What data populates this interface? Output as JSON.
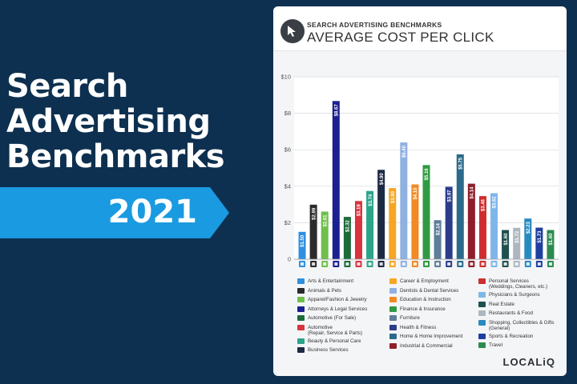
{
  "headline": {
    "line1": "Search",
    "line2": "Advertising",
    "line3": "Benchmarks",
    "year": "2021"
  },
  "card": {
    "kicker": "SEARCH ADVERTISING BENCHMARKS",
    "title": "AVERAGE COST PER CLICK",
    "brand": "LOCALiQ"
  },
  "colors": {
    "background": "#0d3050",
    "ribbon": "#1a9ae0",
    "card": "#f4f5f7"
  },
  "chart_data": {
    "type": "bar",
    "title": "AVERAGE COST PER CLICK",
    "xlabel": "",
    "ylabel": "",
    "ylim": [
      0,
      10
    ],
    "yticks": [
      "0",
      "$2",
      "$4",
      "$6",
      "$8",
      "$10"
    ],
    "grid": true,
    "legend_position": "bottom",
    "categories": [
      "Arts & Entertainment",
      "Animals & Pets",
      "Apparel/Fashion & Jewelry",
      "Attorneys & Legal Services",
      "Automotive (For Sale)",
      "Automotive (Repair, Service & Parts)",
      "Beauty & Personal Care",
      "Business Services",
      "Career & Employment",
      "Dentists & Dental Services",
      "Education & Instruction",
      "Finance & Insurance",
      "Furniture",
      "Health & Fitness",
      "Home & Home Improvement",
      "Industrial & Commercial",
      "Personal Services (Weddings, Cleaners, etc.)",
      "Physicians & Surgeons",
      "Real Estate",
      "Restaurants & Food",
      "Shopping, Collectibles & Gifts (General)",
      "Sports & Recreation",
      "Travel"
    ],
    "values": [
      1.5,
      2.99,
      2.61,
      8.67,
      2.32,
      3.19,
      3.74,
      4.9,
      3.9,
      6.4,
      4.1,
      5.16,
      2.14,
      3.97,
      5.75,
      4.14,
      3.46,
      3.62,
      1.6,
      1.72,
      2.23,
      1.73,
      1.6
    ],
    "value_labels": [
      "$1.50",
      "$2.99",
      "$2.61",
      "$8.67",
      "$2.32",
      "$3.19",
      "$3.74",
      "$4.90",
      "$3.90",
      "$6.40",
      "$4.10",
      "$5.16",
      "$2.14",
      "$3.97",
      "$5.75",
      "$4.14",
      "$3.46",
      "$3.62",
      "$1.60",
      "$1.72",
      "$2.23",
      "$1.73",
      "$1.60"
    ],
    "bar_colors": [
      "#2f8fe0",
      "#2b2b2b",
      "#6fbf4a",
      "#1b1f8f",
      "#1e6b3a",
      "#d9333f",
      "#2aa58a",
      "#1c2a44",
      "#f6a623",
      "#8fb1e0",
      "#f28a24",
      "#2f9a42",
      "#5e7e99",
      "#2a3c8a",
      "#2b6a8a",
      "#8e1f2a",
      "#cf2e2e",
      "#7fb6ea",
      "#1f4f4f",
      "#aeb6bf",
      "#2a8ac0",
      "#1f3fa0",
      "#2a8a50"
    ]
  },
  "legend": {
    "items": [
      {
        "label": "Arts & Entertainment",
        "color": "#2f8fe0"
      },
      {
        "label": "Animals & Pets",
        "color": "#2b2b2b"
      },
      {
        "label": "Apparel/Fashion & Jewelry",
        "color": "#6fbf4a"
      },
      {
        "label": "Attorneys & Legal Services",
        "color": "#1b1f8f"
      },
      {
        "label": "Automotive (For Sale)",
        "color": "#1e6b3a"
      },
      {
        "label": "Automotive",
        "sub": "(Repair, Service & Parts)",
        "color": "#d9333f"
      },
      {
        "label": "Beauty & Personal Care",
        "color": "#2aa58a"
      },
      {
        "label": "Business Services",
        "color": "#1c2a44"
      },
      {
        "label": "Career & Employment",
        "color": "#f6a623"
      },
      {
        "label": "Dentists & Dental Services",
        "color": "#8fb1e0"
      },
      {
        "label": "Education & Instruction",
        "color": "#f28a24"
      },
      {
        "label": "Finance & Insurance",
        "color": "#2f9a42"
      },
      {
        "label": "Furniture",
        "color": "#5e7e99"
      },
      {
        "label": "Health & Fitness",
        "color": "#2a3c8a"
      },
      {
        "label": "Home & Home Improvement",
        "color": "#2b6a8a"
      },
      {
        "label": "Industrial & Commercial",
        "color": "#8e1f2a"
      },
      {
        "label": "Personal Services",
        "sub": "(Weddings, Cleaners, etc.)",
        "color": "#cf2e2e"
      },
      {
        "label": "Physicians & Surgeons",
        "color": "#7fb6ea"
      },
      {
        "label": "Real Estate",
        "color": "#1f4f4f"
      },
      {
        "label": "Restaurants & Food",
        "color": "#aeb6bf"
      },
      {
        "label": "Shopping, Collectibles & Gifts",
        "sub": "(General)",
        "color": "#2a8ac0"
      },
      {
        "label": "Sports & Recreation",
        "color": "#1f3fa0"
      },
      {
        "label": "Travel",
        "color": "#2a8a50"
      }
    ]
  }
}
